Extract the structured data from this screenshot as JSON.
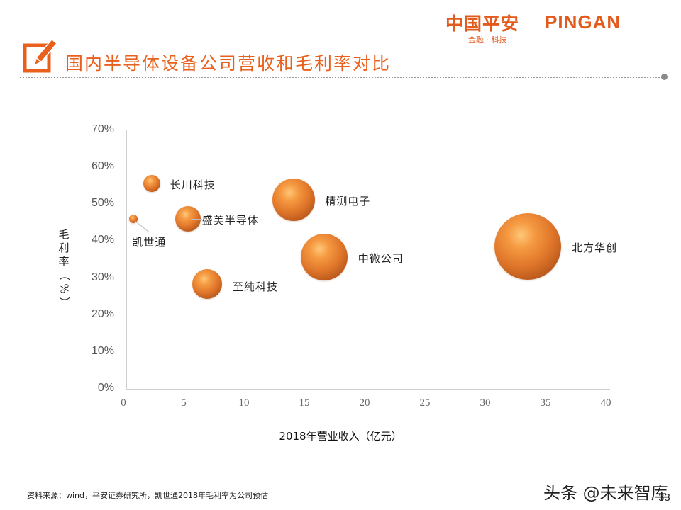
{
  "header": {
    "logo_cn": "中国平安",
    "logo_en": "PINGAN",
    "logo_tagline": "金融 · 科技",
    "title": "国内半导体设备公司营收和毛利率对比",
    "accent_color": "#e8601c"
  },
  "chart_data": {
    "type": "scatter",
    "subtype": "bubble",
    "title": "国内半导体设备公司营收和毛利率对比",
    "xlabel": "2018年营业收入（亿元）",
    "ylabel": "毛利率（%）",
    "xlim": [
      0,
      40
    ],
    "ylim": [
      0,
      70
    ],
    "x_ticks": [
      "0",
      "5",
      "10",
      "15",
      "20",
      "25",
      "30",
      "35",
      "40"
    ],
    "y_ticks": [
      "0%",
      "10%",
      "20%",
      "30%",
      "40%",
      "50%",
      "60%",
      "70%"
    ],
    "grid": false,
    "legend": "none",
    "bubble_color": "#e0762a",
    "points": [
      {
        "name": "长川科技",
        "x": 2.1,
        "y": 55.7,
        "size": 12
      },
      {
        "name": "凯世通",
        "x": 0.6,
        "y": 46.1,
        "size": 6
      },
      {
        "name": "盛美半导体",
        "x": 5.1,
        "y": 46.1,
        "size": 18
      },
      {
        "name": "精测电子",
        "x": 13.9,
        "y": 51.3,
        "size": 30
      },
      {
        "name": "中微公司",
        "x": 16.4,
        "y": 35.6,
        "size": 33
      },
      {
        "name": "北方华创",
        "x": 33.3,
        "y": 38.5,
        "size": 47
      },
      {
        "name": "至纯科技",
        "x": 6.7,
        "y": 28.4,
        "size": 21
      }
    ]
  },
  "ylabel_chars": [
    "毛",
    "利",
    "率",
    "（",
    "%",
    "）"
  ],
  "footer": {
    "source": "资料来源：wind，平安证券研究所，凯世通2018年毛利率为公司预估",
    "watermark": "头条 @未来智库",
    "page_number": "33"
  }
}
